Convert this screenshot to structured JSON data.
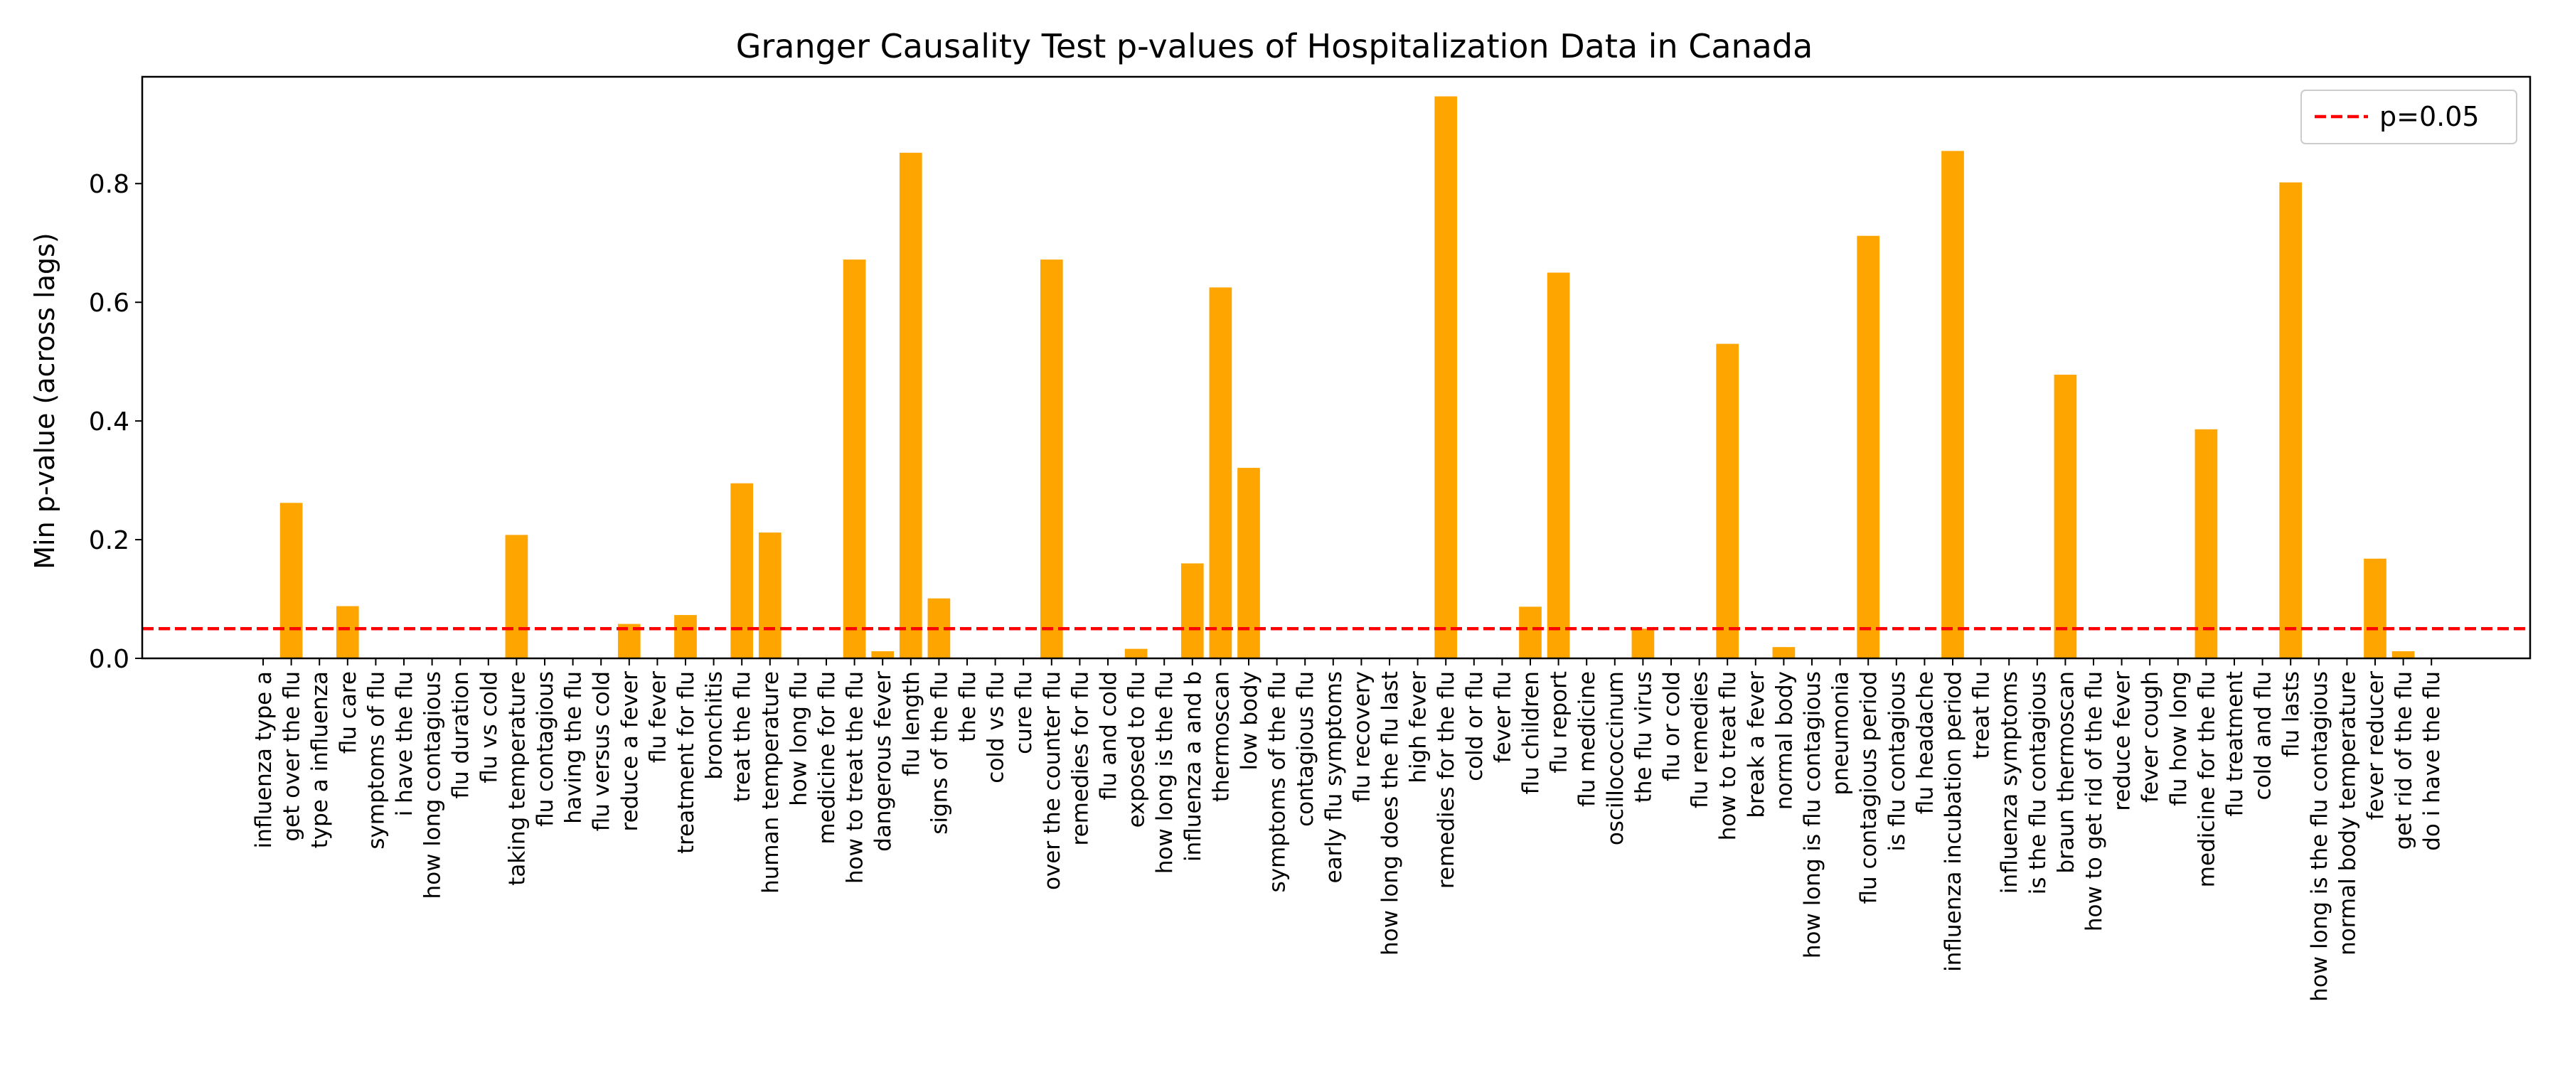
{
  "chart_data": {
    "type": "bar",
    "title": "Granger Causality Test p-values of Hospitalization Data in Canada",
    "xlabel": "",
    "ylabel": "Min p-value (across lags)",
    "ylim": [
      0,
      0.98
    ],
    "yticks": [
      "0.0",
      "0.2",
      "0.4",
      "0.6",
      "0.8"
    ],
    "ytick_values": [
      0,
      0.2,
      0.4,
      0.6,
      0.8
    ],
    "grid": false,
    "bar_color": "#ffa500",
    "categories": [
      "influenza type a",
      "get over the flu",
      "type a influenza",
      "flu care",
      "symptoms of flu",
      "i have the flu",
      "how long contagious",
      "flu duration",
      "flu vs cold",
      "taking temperature",
      "flu contagious",
      "having the flu",
      "flu versus cold",
      "reduce a fever",
      "flu fever",
      "treatment for flu",
      "bronchitis",
      "treat the flu",
      "human temperature",
      "how long flu",
      "medicine for flu",
      "how to treat the flu",
      "dangerous fever",
      "flu length",
      "signs of the flu",
      "the flu",
      "cold vs flu",
      "cure flu",
      "over the counter flu",
      "remedies for flu",
      "flu and cold",
      "exposed to flu",
      "how long is the flu",
      "influenza a and b",
      "thermoscan",
      "low body",
      "symptoms of the flu",
      "contagious flu",
      "early flu symptoms",
      "flu recovery",
      "how long does the flu last",
      "high fever",
      "remedies for the flu",
      "cold or flu",
      "fever flu",
      "flu children",
      "flu report",
      "flu medicine",
      "oscillococcinum",
      "the flu virus",
      "flu or cold",
      "flu remedies",
      "how to treat flu",
      "break a fever",
      "normal body",
      "how long is flu contagious",
      "pneumonia",
      "flu contagious period",
      "is flu contagious",
      "flu headache",
      "influenza incubation period",
      "treat flu",
      "influenza symptoms",
      "is the flu contagious",
      "braun thermoscan",
      "how to get rid of the flu",
      "reduce fever",
      "fever cough",
      "flu how long",
      "medicine for the flu",
      "flu treatment",
      "cold and flu",
      "flu lasts",
      "how long is the flu contagious",
      "normal body temperature",
      "fever reducer",
      "get rid of the flu",
      "do i have the flu"
    ],
    "values": [
      0.0,
      0.262,
      0.0,
      0.088,
      0.0,
      0.0,
      0.0,
      0.0,
      0.0,
      0.208,
      0.0,
      0.0,
      0.0,
      0.058,
      0.0,
      0.073,
      0.0,
      0.295,
      0.212,
      0.0,
      0.0,
      0.672,
      0.012,
      0.852,
      0.101,
      0.0,
      0.0,
      0.0,
      0.672,
      0.0,
      0.0,
      0.016,
      0.0,
      0.16,
      0.625,
      0.321,
      0.0,
      0.0,
      0.0,
      0.0,
      0.0,
      0.0,
      0.947,
      0.0,
      0.0,
      0.087,
      0.65,
      0.0,
      0.0,
      0.05,
      0.0,
      0.0,
      0.53,
      0.0,
      0.019,
      0.0,
      0.0,
      0.712,
      0.0,
      0.0,
      0.855,
      0.0,
      0.0,
      0.0,
      0.478,
      0.0,
      0.0,
      0.0,
      0.0,
      0.386,
      0.0,
      0.0,
      0.802,
      0.0,
      0.0,
      0.168,
      0.012,
      0.0
    ],
    "reference_line": {
      "label": "p=0.05",
      "value": 0.05,
      "color": "#ff0000",
      "style": "dashed"
    },
    "legend": {
      "placement": "top-right",
      "entries": [
        "p=0.05"
      ]
    }
  }
}
